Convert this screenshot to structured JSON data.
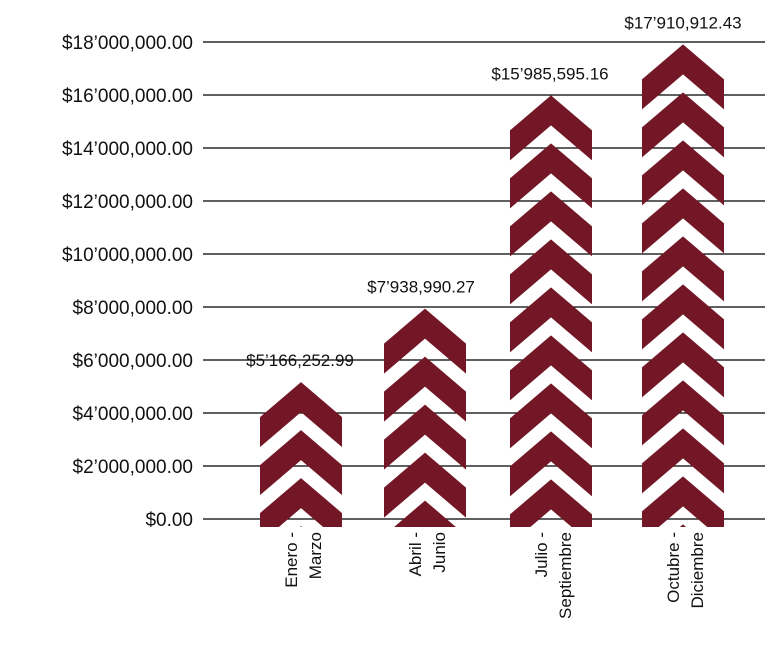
{
  "chart_data": {
    "type": "bar",
    "title": "",
    "xlabel": "",
    "ylabel": "",
    "categories": [
      [
        "Enero -",
        "Marzo"
      ],
      [
        "Abril -",
        "Junio"
      ],
      [
        "Julio -",
        "Septiembre"
      ],
      [
        "Octubre -",
        "Diciembre"
      ]
    ],
    "values": [
      5166252.99,
      7938990.27,
      15985595.16,
      17910912.43
    ],
    "data_labels": [
      "$5’166,252.99",
      "$7’938,990.27",
      "$15’985,595.16",
      "$17’910,912.43"
    ],
    "ylim": [
      0,
      18000000
    ],
    "yticks": [
      0,
      2000000,
      4000000,
      6000000,
      8000000,
      10000000,
      12000000,
      14000000,
      16000000,
      18000000
    ],
    "ytick_labels": [
      "$0.00",
      "$2’000,000.00",
      "$4’000,000.00",
      "$6’000,000.00",
      "$8’000,000.00",
      "$10’000,000.00",
      "$12’000,000.00",
      "$14’000,000.00",
      "$16’000,000.00",
      "$18’000,000.00"
    ],
    "bar_style": "stacked-chevrons",
    "grid": true,
    "legend": "none",
    "colors": {
      "bar": "#731727",
      "text": "#111111",
      "grid": "#000000"
    }
  }
}
